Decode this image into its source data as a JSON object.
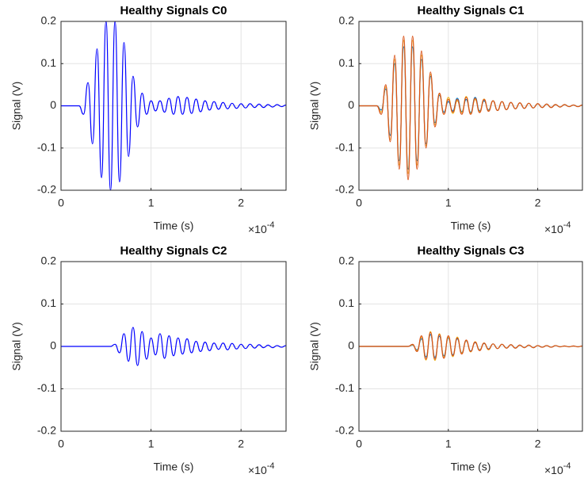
{
  "chart_data": [
    {
      "type": "line",
      "title": "Healthy Signals C0",
      "xlabel": "Time (s)",
      "ylabel": "Signal (V)",
      "x_multiplier": "×10",
      "x_exponent": "-4",
      "xlim": [
        0,
        0.00025
      ],
      "ylim": [
        -0.2,
        0.2
      ],
      "xticks": [
        0,
        {
          "value": 0.0001,
          "label": "1"
        },
        {
          "value": 0.0002,
          "label": "2"
        }
      ],
      "yticks": [
        -0.2,
        -0.1,
        0,
        0.1,
        0.2
      ],
      "grid": true,
      "x": [
        0,
        5e-06,
        1e-05,
        1.5e-05,
        2e-05,
        2.5e-05,
        3e-05,
        3.5e-05,
        4e-05,
        4.5e-05,
        5e-05,
        5.5e-05,
        6e-05,
        6.5e-05,
        7e-05,
        7.5e-05,
        8e-05,
        8.5e-05,
        9e-05,
        9.5e-05,
        0.0001,
        0.000105,
        0.00011,
        0.000115,
        0.00012,
        0.000125,
        0.00013,
        0.000135,
        0.00014,
        0.000145,
        0.00015,
        0.000155,
        0.00016,
        0.000165,
        0.00017,
        0.000175,
        0.00018,
        0.000185,
        0.00019,
        0.000195,
        0.0002,
        0.000205,
        0.00021,
        0.000215,
        0.00022,
        0.000225,
        0.00023,
        0.000235,
        0.00024,
        0.000245,
        0.00025
      ],
      "series": [
        {
          "color": "#0000ff",
          "values": [
            0,
            0,
            0,
            0,
            0,
            -0.02,
            0.055,
            -0.09,
            0.135,
            -0.17,
            0.2,
            -0.2,
            0.2,
            -0.18,
            0.15,
            -0.12,
            0.07,
            -0.05,
            0.03,
            -0.02,
            0.012,
            -0.012,
            0.012,
            -0.015,
            0.018,
            -0.02,
            0.022,
            -0.02,
            0.02,
            -0.018,
            0.016,
            -0.014,
            0.012,
            -0.01,
            0.01,
            -0.008,
            0.008,
            -0.007,
            0.006,
            -0.006,
            0.005,
            -0.005,
            0.005,
            -0.004,
            0.004,
            -0.004,
            0.003,
            -0.003,
            0.003,
            -0.002,
            0.002
          ]
        }
      ]
    },
    {
      "type": "line",
      "title": "Healthy Signals C1",
      "xlabel": "Time (s)",
      "ylabel": "Signal (V)",
      "x_multiplier": "×10",
      "x_exponent": "-4",
      "xlim": [
        0,
        0.00025
      ],
      "ylim": [
        -0.2,
        0.2
      ],
      "xticks": [
        0,
        {
          "value": 0.0001,
          "label": "1"
        },
        {
          "value": 0.0002,
          "label": "2"
        }
      ],
      "yticks": [
        -0.2,
        -0.1,
        0,
        0.1,
        0.2
      ],
      "grid": true,
      "x": [
        0,
        5e-06,
        1e-05,
        1.5e-05,
        2e-05,
        2.5e-05,
        3e-05,
        3.5e-05,
        4e-05,
        4.5e-05,
        5e-05,
        5.5e-05,
        6e-05,
        6.5e-05,
        7e-05,
        7.5e-05,
        8e-05,
        8.5e-05,
        9e-05,
        9.5e-05,
        0.0001,
        0.000105,
        0.00011,
        0.000115,
        0.00012,
        0.000125,
        0.00013,
        0.000135,
        0.00014,
        0.000145,
        0.00015,
        0.000155,
        0.00016,
        0.000165,
        0.00017,
        0.000175,
        0.00018,
        0.000185,
        0.00019,
        0.000195,
        0.0002,
        0.000205,
        0.00021,
        0.000215,
        0.00022,
        0.000225,
        0.00023,
        0.000235,
        0.00024,
        0.000245,
        0.00025
      ],
      "series": [
        {
          "color": "#0072bd",
          "values": [
            0,
            0,
            0,
            0,
            0,
            -0.01,
            0.04,
            -0.07,
            0.1,
            -0.13,
            0.14,
            -0.15,
            0.14,
            -0.13,
            0.11,
            -0.09,
            0.07,
            -0.04,
            0.025,
            -0.015,
            0.01,
            -0.012,
            0.018,
            -0.014,
            0.015,
            -0.016,
            0.02,
            -0.012,
            0.012,
            -0.01,
            0.012,
            -0.011,
            0.01,
            -0.009,
            0.008,
            -0.007,
            0.007,
            -0.006,
            0.006,
            -0.005,
            0.005,
            -0.004,
            0.004,
            -0.004,
            0.003,
            -0.003,
            0.003,
            -0.002,
            0.002,
            -0.002,
            0.002
          ]
        },
        {
          "color": "#edb120",
          "values": [
            0,
            0,
            0,
            0,
            0,
            -0.015,
            0.045,
            -0.08,
            0.11,
            -0.14,
            0.155,
            -0.16,
            0.155,
            -0.14,
            0.12,
            -0.095,
            0.075,
            -0.045,
            0.028,
            -0.02,
            0.02,
            -0.018,
            0.012,
            -0.016,
            0.022,
            -0.018,
            0.015,
            -0.014,
            0.016,
            -0.012,
            0.012,
            -0.011,
            0.01,
            -0.009,
            0.008,
            -0.007,
            0.007,
            -0.006,
            0.006,
            -0.005,
            0.005,
            -0.004,
            0.004,
            -0.004,
            0.003,
            -0.003,
            0.003,
            -0.002,
            0.002,
            -0.002,
            0.002
          ]
        },
        {
          "color": "#d95319",
          "values": [
            0,
            0,
            0,
            0,
            0,
            -0.02,
            0.05,
            -0.085,
            0.12,
            -0.15,
            0.165,
            -0.175,
            0.165,
            -0.15,
            0.13,
            -0.1,
            0.08,
            -0.05,
            0.03,
            -0.02,
            0.015,
            -0.015,
            0.015,
            -0.02,
            0.02,
            -0.02,
            0.018,
            -0.016,
            0.015,
            -0.013,
            0.012,
            -0.011,
            0.01,
            -0.009,
            0.008,
            -0.007,
            0.007,
            -0.006,
            0.006,
            -0.005,
            0.005,
            -0.004,
            0.004,
            -0.004,
            0.003,
            -0.003,
            0.003,
            -0.002,
            0.002,
            -0.002,
            0.002
          ]
        }
      ]
    },
    {
      "type": "line",
      "title": "Healthy Signals C2",
      "xlabel": "Time (s)",
      "ylabel": "Signal (V)",
      "x_multiplier": "×10",
      "x_exponent": "-4",
      "xlim": [
        0,
        0.00025
      ],
      "ylim": [
        -0.2,
        0.2
      ],
      "xticks": [
        0,
        {
          "value": 0.0001,
          "label": "1"
        },
        {
          "value": 0.0002,
          "label": "2"
        }
      ],
      "yticks": [
        -0.2,
        -0.1,
        0,
        0.1,
        0.2
      ],
      "grid": true,
      "x": [
        0,
        5e-06,
        1e-05,
        1.5e-05,
        2e-05,
        2.5e-05,
        3e-05,
        3.5e-05,
        4e-05,
        4.5e-05,
        5e-05,
        5.5e-05,
        6e-05,
        6.5e-05,
        7e-05,
        7.5e-05,
        8e-05,
        8.5e-05,
        9e-05,
        9.5e-05,
        0.0001,
        0.000105,
        0.00011,
        0.000115,
        0.00012,
        0.000125,
        0.00013,
        0.000135,
        0.00014,
        0.000145,
        0.00015,
        0.000155,
        0.00016,
        0.000165,
        0.00017,
        0.000175,
        0.00018,
        0.000185,
        0.00019,
        0.000195,
        0.0002,
        0.000205,
        0.00021,
        0.000215,
        0.00022,
        0.000225,
        0.00023,
        0.000235,
        0.00024,
        0.000245,
        0.00025
      ],
      "series": [
        {
          "color": "#0000ff",
          "values": [
            0,
            0,
            0,
            0,
            0,
            0,
            0,
            0,
            0,
            0,
            0,
            0,
            0.005,
            -0.015,
            0.03,
            -0.035,
            0.045,
            -0.045,
            0.035,
            -0.03,
            0.02,
            -0.02,
            0.03,
            -0.028,
            0.025,
            -0.022,
            0.02,
            -0.018,
            0.018,
            -0.015,
            0.012,
            -0.012,
            0.01,
            -0.01,
            0.008,
            -0.007,
            0.008,
            -0.008,
            0.007,
            -0.006,
            0.005,
            -0.005,
            0.005,
            -0.004,
            0.004,
            -0.003,
            0.003,
            -0.003,
            0.002,
            -0.002,
            0.002
          ]
        }
      ]
    },
    {
      "type": "line",
      "title": "Healthy Signals C3",
      "xlabel": "Time (s)",
      "ylabel": "Signal (V)",
      "x_multiplier": "×10",
      "x_exponent": "-4",
      "xlim": [
        0,
        0.00025
      ],
      "ylim": [
        -0.2,
        0.2
      ],
      "xticks": [
        0,
        {
          "value": 0.0001,
          "label": "1"
        },
        {
          "value": 0.0002,
          "label": "2"
        }
      ],
      "yticks": [
        -0.2,
        -0.1,
        0,
        0.1,
        0.2
      ],
      "grid": true,
      "x": [
        0,
        5e-06,
        1e-05,
        1.5e-05,
        2e-05,
        2.5e-05,
        3e-05,
        3.5e-05,
        4e-05,
        4.5e-05,
        5e-05,
        5.5e-05,
        6e-05,
        6.5e-05,
        7e-05,
        7.5e-05,
        8e-05,
        8.5e-05,
        9e-05,
        9.5e-05,
        0.0001,
        0.000105,
        0.00011,
        0.000115,
        0.00012,
        0.000125,
        0.00013,
        0.000135,
        0.00014,
        0.000145,
        0.00015,
        0.000155,
        0.00016,
        0.000165,
        0.00017,
        0.000175,
        0.00018,
        0.000185,
        0.00019,
        0.000195,
        0.0002,
        0.000205,
        0.00021,
        0.000215,
        0.00022,
        0.000225,
        0.00023,
        0.000235,
        0.00024,
        0.000245,
        0.00025
      ],
      "series": [
        {
          "color": "#0072bd",
          "values": [
            0,
            0,
            0,
            0,
            0,
            0,
            0,
            0,
            0,
            0,
            0,
            0,
            0.003,
            -0.008,
            0.018,
            -0.025,
            0.028,
            -0.026,
            0.024,
            -0.022,
            0.02,
            -0.02,
            0.018,
            -0.015,
            0.013,
            -0.011,
            0.009,
            -0.008,
            0.007,
            -0.006,
            0.006,
            -0.005,
            0.005,
            -0.004,
            0.004,
            -0.004,
            0.003,
            -0.003,
            0.003,
            -0.003,
            0.002,
            -0.002,
            0.002,
            -0.002,
            0.002,
            -0.001,
            0.001,
            -0.001,
            0.001,
            -0.001,
            0.001
          ]
        },
        {
          "color": "#edb120",
          "values": [
            0,
            0,
            0,
            0,
            0,
            0,
            0,
            0,
            0,
            0,
            0,
            0,
            0.004,
            -0.01,
            0.022,
            -0.032,
            0.035,
            -0.033,
            0.03,
            -0.025,
            0.022,
            -0.024,
            0.022,
            -0.016,
            0.014,
            -0.013,
            0.011,
            -0.009,
            0.008,
            -0.008,
            0.006,
            -0.005,
            0.005,
            -0.004,
            0.004,
            -0.004,
            0.003,
            -0.003,
            0.003,
            -0.003,
            0.002,
            -0.002,
            0.002,
            -0.002,
            0.002,
            -0.001,
            0.001,
            -0.001,
            0.001,
            -0.001,
            0.001
          ]
        },
        {
          "color": "#d95319",
          "values": [
            0,
            0,
            0,
            0,
            0,
            0,
            0,
            0,
            0,
            0,
            0,
            0,
            0.005,
            -0.012,
            0.025,
            -0.03,
            0.033,
            -0.03,
            0.028,
            -0.028,
            0.025,
            -0.022,
            0.02,
            -0.018,
            0.015,
            -0.012,
            0.01,
            -0.01,
            0.008,
            -0.007,
            0.006,
            -0.005,
            0.005,
            -0.004,
            0.004,
            -0.004,
            0.003,
            -0.003,
            0.003,
            -0.003,
            0.002,
            -0.002,
            0.002,
            -0.002,
            0.002,
            -0.001,
            0.001,
            -0.001,
            0.001,
            -0.001,
            0.001
          ]
        }
      ]
    }
  ]
}
